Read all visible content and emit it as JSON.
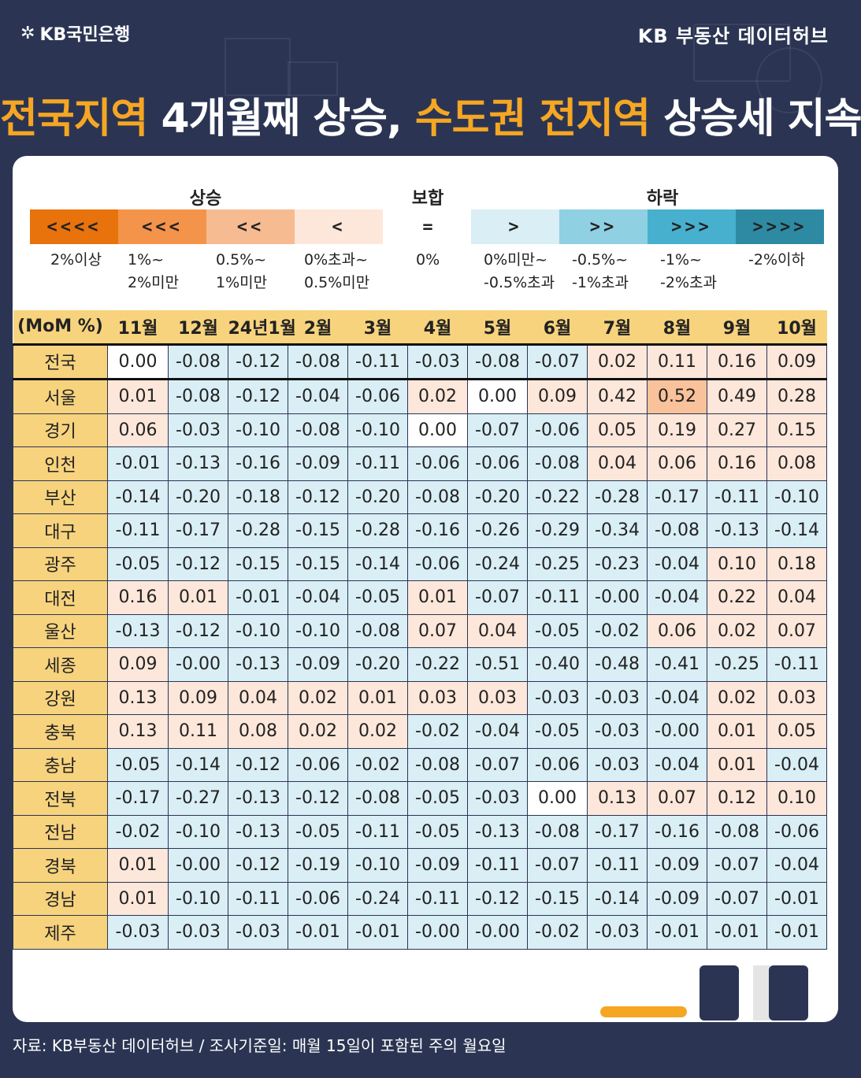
{
  "header": {
    "logo_text": "KB국민은행",
    "brand": "KB 부동산  데이터허브"
  },
  "headline": {
    "part1": "전국지역",
    "part2": " 4개월째 상승, ",
    "part3": "수도권 전지역",
    "part4": " 상승세 지속"
  },
  "legend": {
    "titles": {
      "up": "상승",
      "flat": "보합",
      "down": "하락"
    },
    "boxes": [
      {
        "symbol": "<<<<",
        "color": "#e8720c",
        "label1": "2%이상",
        "label2": ""
      },
      {
        "symbol": "<<<",
        "color": "#f4934a",
        "label1": "1%~",
        "label2": "2%미만"
      },
      {
        "symbol": "<<",
        "color": "#f7bb92",
        "label1": "0.5%~",
        "label2": "1%미만"
      },
      {
        "symbol": "<",
        "color": "#fde7da",
        "label1": "0%초과~",
        "label2": "0.5%미만"
      },
      {
        "symbol": "=",
        "color": "#ffffff",
        "label1": "0%",
        "label2": ""
      },
      {
        "symbol": ">",
        "color": "#d9eef5",
        "label1": "0%미만~",
        "label2": "-0.5%초과"
      },
      {
        "symbol": ">>",
        "color": "#8fd0e3",
        "label1": "-0.5%~",
        "label2": "-1%초과"
      },
      {
        "symbol": ">>>",
        "color": "#48b0cf",
        "label1": "-1%~",
        "label2": "-2%초과"
      },
      {
        "symbol": ">>>>",
        "color": "#2e8aa3",
        "label1": "-2%이하",
        "label2": ""
      }
    ]
  },
  "table": {
    "corner": "(MoM %)",
    "columns": [
      "11월",
      "12월",
      "24년1월",
      "2월",
      "3월",
      "4월",
      "5월",
      "6월",
      "7월",
      "8월",
      "9월",
      "10월"
    ],
    "rows": [
      {
        "name": "전국",
        "values": [
          "0.00",
          "-0.08",
          "-0.12",
          "-0.08",
          "-0.11",
          "-0.03",
          "-0.08",
          "-0.07",
          "0.02",
          "0.11",
          "0.16",
          "0.09"
        ]
      },
      {
        "name": "서울",
        "values": [
          "0.01",
          "-0.08",
          "-0.12",
          "-0.04",
          "-0.06",
          "0.02",
          "0.00",
          "0.09",
          "0.42",
          "0.52",
          "0.49",
          "0.28"
        ]
      },
      {
        "name": "경기",
        "values": [
          "0.06",
          "-0.03",
          "-0.10",
          "-0.08",
          "-0.10",
          "0.00",
          "-0.07",
          "-0.06",
          "0.05",
          "0.19",
          "0.27",
          "0.15"
        ]
      },
      {
        "name": "인천",
        "values": [
          "-0.01",
          "-0.13",
          "-0.16",
          "-0.09",
          "-0.11",
          "-0.06",
          "-0.06",
          "-0.08",
          "0.04",
          "0.06",
          "0.16",
          "0.08"
        ]
      },
      {
        "name": "부산",
        "values": [
          "-0.14",
          "-0.20",
          "-0.18",
          "-0.12",
          "-0.20",
          "-0.08",
          "-0.20",
          "-0.22",
          "-0.28",
          "-0.17",
          "-0.11",
          "-0.10"
        ]
      },
      {
        "name": "대구",
        "values": [
          "-0.11",
          "-0.17",
          "-0.28",
          "-0.15",
          "-0.28",
          "-0.16",
          "-0.26",
          "-0.29",
          "-0.34",
          "-0.08",
          "-0.13",
          "-0.14"
        ]
      },
      {
        "name": "광주",
        "values": [
          "-0.05",
          "-0.12",
          "-0.15",
          "-0.15",
          "-0.14",
          "-0.06",
          "-0.24",
          "-0.25",
          "-0.23",
          "-0.04",
          "0.10",
          "0.18"
        ]
      },
      {
        "name": "대전",
        "values": [
          "0.16",
          "0.01",
          "-0.01",
          "-0.04",
          "-0.05",
          "0.01",
          "-0.07",
          "-0.11",
          "-0.00",
          "-0.04",
          "0.22",
          "0.04"
        ]
      },
      {
        "name": "울산",
        "values": [
          "-0.13",
          "-0.12",
          "-0.10",
          "-0.10",
          "-0.08",
          "0.07",
          "0.04",
          "-0.05",
          "-0.02",
          "0.06",
          "0.02",
          "0.07"
        ]
      },
      {
        "name": "세종",
        "values": [
          "0.09",
          "-0.00",
          "-0.13",
          "-0.09",
          "-0.20",
          "-0.22",
          "-0.51",
          "-0.40",
          "-0.48",
          "-0.41",
          "-0.25",
          "-0.11"
        ]
      },
      {
        "name": "강원",
        "values": [
          "0.13",
          "0.09",
          "0.04",
          "0.02",
          "0.01",
          "0.03",
          "0.03",
          "-0.03",
          "-0.03",
          "-0.04",
          "0.02",
          "0.03"
        ]
      },
      {
        "name": "충북",
        "values": [
          "0.13",
          "0.11",
          "0.08",
          "0.02",
          "0.02",
          "-0.02",
          "-0.04",
          "-0.05",
          "-0.03",
          "-0.00",
          "0.01",
          "0.05"
        ]
      },
      {
        "name": "충남",
        "values": [
          "-0.05",
          "-0.14",
          "-0.12",
          "-0.06",
          "-0.02",
          "-0.08",
          "-0.07",
          "-0.06",
          "-0.03",
          "-0.04",
          "0.01",
          "-0.04"
        ]
      },
      {
        "name": "전북",
        "values": [
          "-0.17",
          "-0.27",
          "-0.13",
          "-0.12",
          "-0.08",
          "-0.05",
          "-0.03",
          "0.00",
          "0.13",
          "0.07",
          "0.12",
          "0.10"
        ]
      },
      {
        "name": "전남",
        "values": [
          "-0.02",
          "-0.10",
          "-0.13",
          "-0.05",
          "-0.11",
          "-0.05",
          "-0.13",
          "-0.08",
          "-0.17",
          "-0.16",
          "-0.08",
          "-0.06"
        ]
      },
      {
        "name": "경북",
        "values": [
          "0.01",
          "-0.00",
          "-0.12",
          "-0.19",
          "-0.10",
          "-0.09",
          "-0.11",
          "-0.07",
          "-0.11",
          "-0.09",
          "-0.07",
          "-0.04"
        ]
      },
      {
        "name": "경남",
        "values": [
          "0.01",
          "-0.10",
          "-0.11",
          "-0.06",
          "-0.24",
          "-0.11",
          "-0.12",
          "-0.15",
          "-0.14",
          "-0.09",
          "-0.07",
          "-0.01"
        ]
      },
      {
        "name": "제주",
        "values": [
          "-0.03",
          "-0.03",
          "-0.03",
          "-0.01",
          "-0.01",
          "-0.00",
          "-0.00",
          "-0.02",
          "-0.03",
          "-0.01",
          "-0.01",
          "-0.01"
        ]
      }
    ]
  },
  "footer": "자료: KB부동산 데이터허브 / 조사기준일: 매월 15일이 포함된 주의 월요일",
  "colors": {
    "background": "#2b3553",
    "accent": "#f5a623",
    "header_band": "#f7d37e",
    "up_light": "#fde7da",
    "up_mid": "#f9c29a",
    "down_light": "#d9eef5"
  }
}
